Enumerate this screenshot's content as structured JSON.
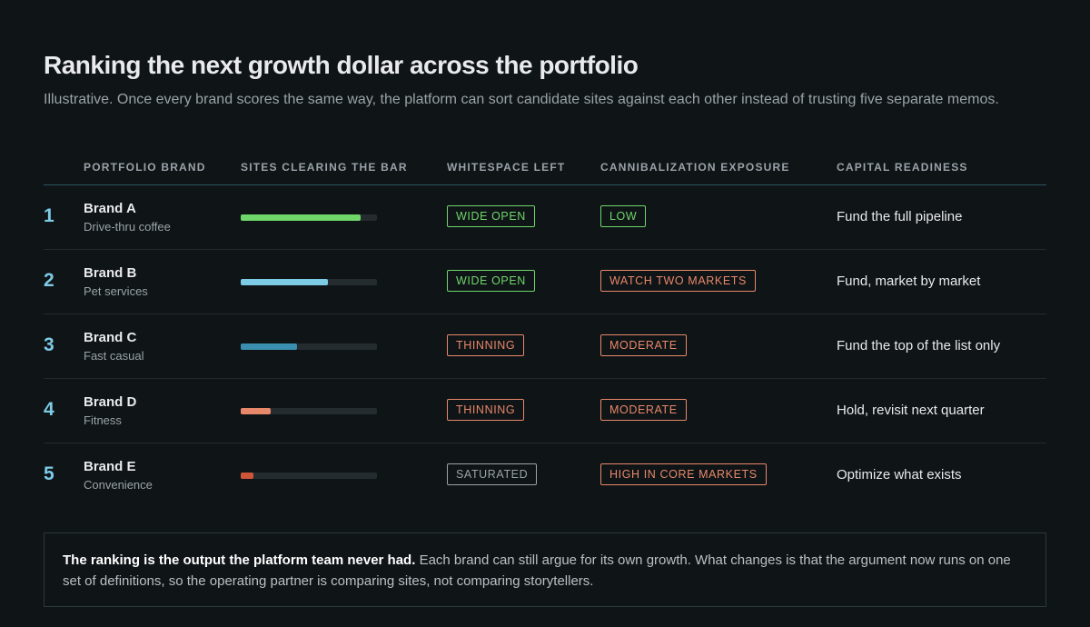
{
  "header": {
    "title": "Ranking the next growth dollar across the portfolio",
    "subtitle": "Illustrative. Once every brand scores the same way, the platform can sort candidate sites against each other instead of trusting five separate memos."
  },
  "table": {
    "columns": [
      "PORTFOLIO BRAND",
      "SITES CLEARING THE BAR",
      "WHITESPACE LEFT",
      "CANNIBALIZATION EXPOSURE",
      "CAPITAL READINESS"
    ],
    "bar_scale": {
      "xlim": [
        0,
        100
      ]
    },
    "rows": [
      {
        "rank": 1,
        "brand": "Brand A",
        "category": "Drive-thru coffee",
        "sites_clearing": 88,
        "bar_color": "#6fd66a",
        "whitespace": {
          "label": "WIDE OPEN",
          "color": "#6fd66a"
        },
        "cannibalization": {
          "label": "LOW",
          "color": "#6fd66a"
        },
        "readiness": "Fund the full pipeline"
      },
      {
        "rank": 2,
        "brand": "Brand B",
        "category": "Pet services",
        "sites_clearing": 64,
        "bar_color": "#7ecbe6",
        "whitespace": {
          "label": "WIDE OPEN",
          "color": "#6fd66a"
        },
        "cannibalization": {
          "label": "WATCH TWO MARKETS",
          "color": "#e8886a"
        },
        "readiness": "Fund, market by market"
      },
      {
        "rank": 3,
        "brand": "Brand C",
        "category": "Fast casual",
        "sites_clearing": 41,
        "bar_color": "#3a8fb0",
        "whitespace": {
          "label": "THINNING",
          "color": "#e8886a"
        },
        "cannibalization": {
          "label": "MODERATE",
          "color": "#e8886a"
        },
        "readiness": "Fund the top of the list only"
      },
      {
        "rank": 4,
        "brand": "Brand D",
        "category": "Fitness",
        "sites_clearing": 22,
        "bar_color": "#e8886a",
        "whitespace": {
          "label": "THINNING",
          "color": "#e8886a"
        },
        "cannibalization": {
          "label": "MODERATE",
          "color": "#e8886a"
        },
        "readiness": "Hold, revisit next quarter"
      },
      {
        "rank": 5,
        "brand": "Brand E",
        "category": "Convenience",
        "sites_clearing": 9,
        "bar_color": "#cf5538",
        "whitespace": {
          "label": "SATURATED",
          "color": "#9aa3a8"
        },
        "cannibalization": {
          "label": "HIGH IN CORE MARKETS",
          "color": "#e8886a"
        },
        "readiness": "Optimize what exists"
      }
    ]
  },
  "note": {
    "lead": "The ranking is the output the platform team never had.",
    "body": "Each brand can still argue for its own growth. What changes is that the argument now runs on one set of definitions, so the operating partner is comparing sites, not comparing storytellers."
  }
}
